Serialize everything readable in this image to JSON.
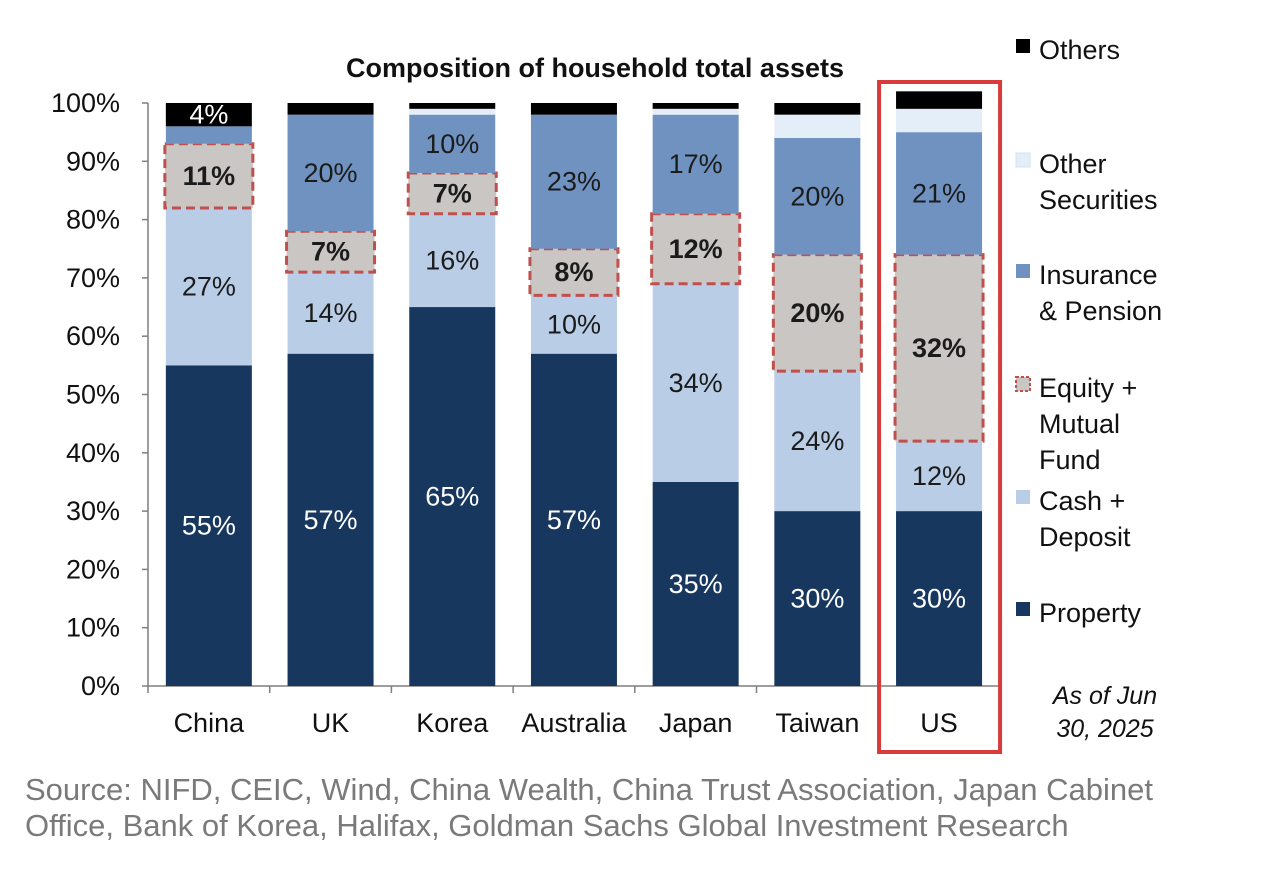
{
  "chart_data": {
    "type": "bar",
    "stacked": true,
    "title": "Composition  of household  total assets",
    "categories": [
      "China",
      "UK",
      "Korea",
      "Australia",
      "Japan",
      "Taiwan",
      "US"
    ],
    "ylim": [
      0,
      100
    ],
    "yticks": [
      "0%",
      "10%",
      "20%",
      "30%",
      "40%",
      "50%",
      "60%",
      "70%",
      "80%",
      "90%",
      "100%"
    ],
    "series": [
      {
        "name": "Property",
        "color": "#17375e",
        "values": [
          55,
          57,
          65,
          57,
          35,
          30,
          30
        ]
      },
      {
        "name": "Cash + Deposit",
        "color": "#b9cde6",
        "values": [
          27,
          14,
          16,
          10,
          34,
          24,
          12
        ]
      },
      {
        "name": "Equity + Mutual Fund",
        "color": "#c9c6c4",
        "values": [
          11,
          7,
          7,
          8,
          12,
          20,
          32
        ]
      },
      {
        "name": "Insurance & Pension",
        "color": "#7092c0",
        "values": [
          3,
          20,
          10,
          23,
          17,
          20,
          21
        ]
      },
      {
        "name": "Other Securities",
        "color": "#e4eef8",
        "values": [
          0,
          0,
          1,
          0,
          1,
          4,
          4
        ]
      },
      {
        "name": "Others",
        "color": "#000000",
        "values": [
          4,
          2,
          1,
          2,
          1,
          2,
          3
        ]
      }
    ],
    "data_labels": [
      [
        "55%",
        "27%",
        "11%",
        "",
        "",
        "4%"
      ],
      [
        "57%",
        "14%",
        "7%",
        "20%",
        "",
        ""
      ],
      [
        "65%",
        "16%",
        "7%",
        "10%",
        "",
        ""
      ],
      [
        "57%",
        "10%",
        "8%",
        "23%",
        "",
        ""
      ],
      [
        "35%",
        "34%",
        "12%",
        "17%",
        "",
        ""
      ],
      [
        "30%",
        "24%",
        "20%",
        "20%",
        "",
        ""
      ],
      [
        "30%",
        "12%",
        "32%",
        "21%",
        "",
        ""
      ]
    ],
    "legend": {
      "placement": "right",
      "items": [
        {
          "lines": [
            "Others"
          ],
          "color": "#000000"
        },
        {
          "lines": [
            "Other",
            "Securities"
          ],
          "color": "#e4eef8"
        },
        {
          "lines": [
            "Insurance",
            "& Pension"
          ],
          "color": "#7092c0"
        },
        {
          "lines": [
            "Equity +",
            "Mutual",
            "Fund"
          ],
          "color": "#c9c6c4",
          "dashed": true
        },
        {
          "lines": [
            "Cash +",
            "Deposit"
          ],
          "color": "#b9cde6"
        },
        {
          "lines": [
            "Property"
          ],
          "color": "#17375e"
        }
      ]
    },
    "highlight_category": "US",
    "highlight_color": "#d93a3a",
    "equity_border_color": "#c0504d",
    "note_lines": [
      "As of Jun",
      "30, 2025"
    ],
    "grid": false
  },
  "source_lines": [
    "Source: NIFD, CEIC, Wind, China Wealth, China Trust Association, Japan Cabinet",
    "Office, Bank of Korea, Halifax, Goldman Sachs Global Investment Research"
  ]
}
